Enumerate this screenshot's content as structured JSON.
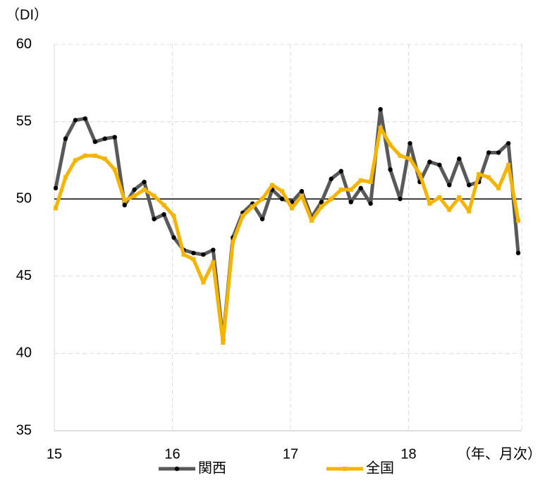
{
  "chart_data": {
    "type": "line",
    "y_label": "（DI）",
    "x_label": "（年、月次）",
    "categories": [
      "15",
      null,
      null,
      null,
      null,
      null,
      null,
      null,
      null,
      null,
      null,
      null,
      "16",
      null,
      null,
      null,
      null,
      null,
      null,
      null,
      null,
      null,
      null,
      null,
      "17",
      null,
      null,
      null,
      null,
      null,
      null,
      null,
      null,
      null,
      null,
      null,
      "18",
      null,
      null,
      null,
      null,
      null,
      null,
      null,
      null,
      null,
      null,
      null
    ],
    "series": [
      {
        "name": "関西",
        "color": "#595959",
        "marker": "circle",
        "values": [
          50.7,
          53.9,
          55.1,
          55.2,
          53.7,
          53.9,
          54.0,
          49.6,
          50.6,
          51.1,
          48.7,
          49.0,
          47.5,
          46.7,
          46.5,
          46.4,
          46.7,
          40.9,
          47.5,
          49.1,
          49.7,
          48.7,
          50.6,
          50.0,
          49.8,
          50.5,
          48.8,
          49.8,
          51.3,
          51.8,
          49.8,
          50.7,
          49.7,
          55.8,
          51.9,
          50.0,
          53.6,
          51.1,
          52.4,
          52.2,
          50.9,
          52.6,
          50.9,
          51.1,
          53.0,
          53.0,
          53.6,
          46.5
        ]
      },
      {
        "name": "全国",
        "color": "#f5b400",
        "marker": "square",
        "values": [
          49.4,
          51.4,
          52.5,
          52.8,
          52.8,
          52.6,
          51.9,
          49.9,
          50.2,
          50.6,
          50.2,
          49.6,
          48.9,
          46.4,
          46.1,
          44.6,
          45.9,
          40.7,
          47.2,
          48.9,
          49.5,
          50.0,
          50.9,
          50.5,
          49.4,
          50.2,
          48.6,
          49.5,
          50.0,
          50.6,
          50.6,
          51.2,
          51.1,
          54.6,
          53.5,
          52.8,
          52.6,
          51.6,
          49.7,
          50.1,
          49.3,
          50.1,
          49.2,
          51.6,
          51.4,
          50.7,
          52.2,
          48.6
        ]
      }
    ],
    "ylim": [
      35,
      60
    ],
    "yticks": [
      35,
      40,
      45,
      50,
      55,
      60
    ],
    "hline": 50,
    "grid": true
  }
}
